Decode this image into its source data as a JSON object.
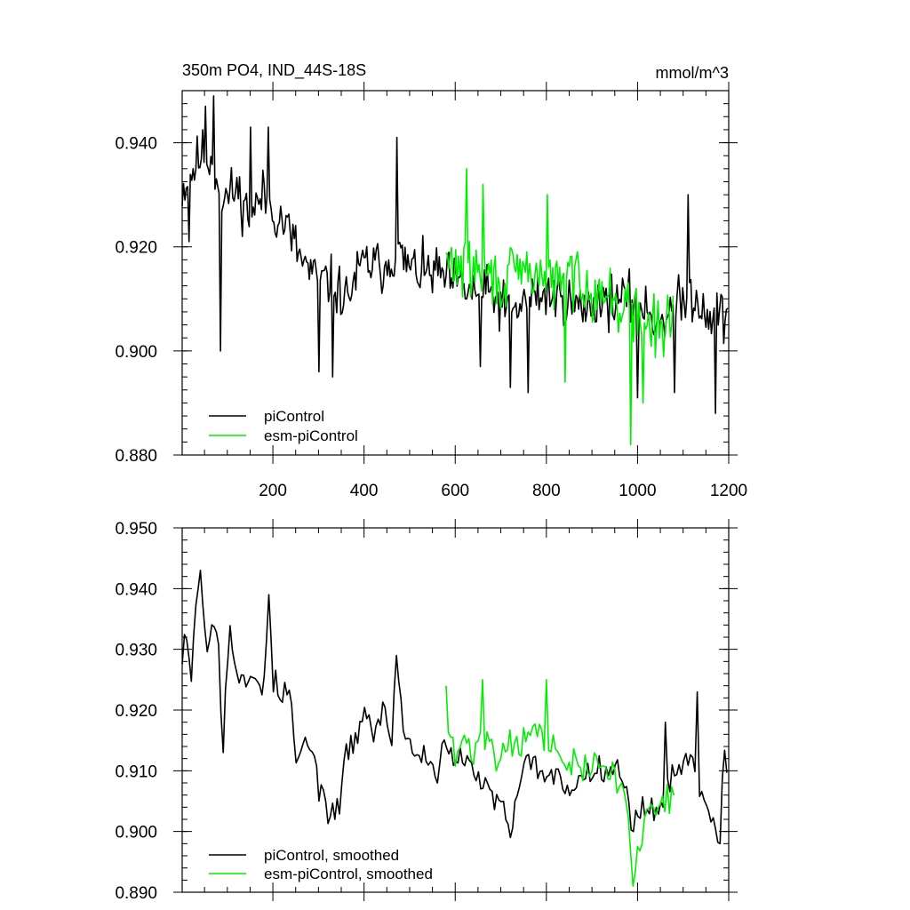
{
  "chart_data": [
    {
      "type": "line",
      "title": "350m PO4, IND_44S-18S",
      "units": "mmol/m^3",
      "xlim": [
        1,
        1200
      ],
      "ylim": [
        0.88,
        0.95
      ],
      "xticks": [
        200,
        400,
        600,
        800,
        1000,
        1200
      ],
      "xtick_labels": [
        "200",
        "400",
        "600",
        "800",
        "1000",
        "1200"
      ],
      "yticks": [
        0.88,
        0.9,
        0.92,
        0.94
      ],
      "ytick_labels": [
        "0.880",
        "0.900",
        "0.920",
        "0.940"
      ],
      "grid": false,
      "legend_position": "bottom-left",
      "series": [
        {
          "name": "piControl",
          "color": "#000000",
          "x_start": 1,
          "x_end": 1200,
          "anchors": [
            [
              1,
              0.931
            ],
            [
              20,
              0.934
            ],
            [
              45,
              0.938
            ],
            [
              70,
              0.936
            ],
            [
              90,
              0.929
            ],
            [
              120,
              0.931
            ],
            [
              150,
              0.926
            ],
            [
              180,
              0.93
            ],
            [
              200,
              0.927
            ],
            [
              230,
              0.924
            ],
            [
              260,
              0.918
            ],
            [
              290,
              0.914
            ],
            [
              330,
              0.913
            ],
            [
              360,
              0.91
            ],
            [
              400,
              0.917
            ],
            [
              440,
              0.916
            ],
            [
              470,
              0.919
            ],
            [
              500,
              0.916
            ],
            [
              530,
              0.915
            ],
            [
              560,
              0.915
            ],
            [
              600,
              0.913
            ],
            [
              640,
              0.911
            ],
            [
              680,
              0.911
            ],
            [
              720,
              0.907
            ],
            [
              760,
              0.91
            ],
            [
              800,
              0.911
            ],
            [
              840,
              0.91
            ],
            [
              880,
              0.908
            ],
            [
              920,
              0.91
            ],
            [
              960,
              0.91
            ],
            [
              1000,
              0.909
            ],
            [
              1040,
              0.906
            ],
            [
              1080,
              0.908
            ],
            [
              1120,
              0.911
            ],
            [
              1160,
              0.907
            ],
            [
              1200,
              0.907
            ]
          ],
          "noise_amp": 0.0075,
          "seed": 11,
          "extrema": [
            [
              15,
              0.921
            ],
            [
              50,
              0.947
            ],
            [
              70,
              0.949
            ],
            [
              85,
              0.9
            ],
            [
              150,
              0.943
            ],
            [
              190,
              0.943
            ],
            [
              300,
              0.896
            ],
            [
              330,
              0.895
            ],
            [
              470,
              0.941
            ],
            [
              655,
              0.897
            ],
            [
              720,
              0.893
            ],
            [
              760,
              0.892
            ],
            [
              1000,
              0.891
            ],
            [
              1080,
              0.892
            ],
            [
              1110,
              0.93
            ],
            [
              1170,
              0.888
            ]
          ]
        },
        {
          "name": "esm-piControl",
          "color": "#00ee00",
          "x_start": 580,
          "x_end": 1080,
          "anchors": [
            [
              580,
              0.917
            ],
            [
              620,
              0.916
            ],
            [
              660,
              0.915
            ],
            [
              700,
              0.913
            ],
            [
              740,
              0.915
            ],
            [
              780,
              0.915
            ],
            [
              820,
              0.913
            ],
            [
              860,
              0.915
            ],
            [
              900,
              0.912
            ],
            [
              940,
              0.91
            ],
            [
              980,
              0.908
            ],
            [
              1020,
              0.905
            ],
            [
              1060,
              0.904
            ],
            [
              1080,
              0.908
            ]
          ],
          "noise_amp": 0.0085,
          "seed": 29,
          "extrema": [
            [
              625,
              0.935
            ],
            [
              660,
              0.932
            ],
            [
              800,
              0.93
            ],
            [
              840,
              0.894
            ],
            [
              985,
              0.882
            ],
            [
              1010,
              0.89
            ]
          ]
        }
      ]
    },
    {
      "type": "line",
      "xlim": [
        1,
        1200
      ],
      "ylim": [
        0.89,
        0.95
      ],
      "xticks": [
        200,
        400,
        600,
        800,
        1000,
        1200
      ],
      "yticks": [
        0.89,
        0.9,
        0.91,
        0.92,
        0.93,
        0.94,
        0.95
      ],
      "ytick_labels": [
        "0.890",
        "0.900",
        "0.910",
        "0.920",
        "0.930",
        "0.940",
        "0.950"
      ],
      "grid": false,
      "legend_position": "bottom-left",
      "series": [
        {
          "name": "piControl, smoothed",
          "color": "#000000",
          "x_start": 1,
          "x_end": 1200,
          "anchors": [
            [
              1,
              0.93
            ],
            [
              10,
              0.934
            ],
            [
              20,
              0.925
            ],
            [
              30,
              0.938
            ],
            [
              40,
              0.942
            ],
            [
              55,
              0.93
            ],
            [
              70,
              0.936
            ],
            [
              80,
              0.934
            ],
            [
              90,
              0.913
            ],
            [
              105,
              0.935
            ],
            [
              120,
              0.925
            ],
            [
              140,
              0.924
            ],
            [
              160,
              0.926
            ],
            [
              180,
              0.924
            ],
            [
              190,
              0.938
            ],
            [
              200,
              0.925
            ],
            [
              220,
              0.922
            ],
            [
              240,
              0.923
            ],
            [
              250,
              0.91
            ],
            [
              270,
              0.915
            ],
            [
              290,
              0.912
            ],
            [
              300,
              0.908
            ],
            [
              320,
              0.904
            ],
            [
              340,
              0.902
            ],
            [
              360,
              0.912
            ],
            [
              380,
              0.915
            ],
            [
              400,
              0.92
            ],
            [
              420,
              0.916
            ],
            [
              440,
              0.92
            ],
            [
              460,
              0.915
            ],
            [
              470,
              0.929
            ],
            [
              490,
              0.915
            ],
            [
              510,
              0.913
            ],
            [
              540,
              0.912
            ],
            [
              560,
              0.91
            ],
            [
              580,
              0.915
            ],
            [
              600,
              0.912
            ],
            [
              640,
              0.91
            ],
            [
              680,
              0.906
            ],
            [
              710,
              0.903
            ],
            [
              720,
              0.899
            ],
            [
              740,
              0.907
            ],
            [
              760,
              0.912
            ],
            [
              790,
              0.91
            ],
            [
              820,
              0.909
            ],
            [
              850,
              0.907
            ],
            [
              880,
              0.909
            ],
            [
              900,
              0.91
            ],
            [
              920,
              0.911
            ],
            [
              960,
              0.911
            ],
            [
              990,
              0.9
            ],
            [
              1010,
              0.905
            ],
            [
              1040,
              0.903
            ],
            [
              1060,
              0.907
            ],
            [
              1080,
              0.909
            ],
            [
              1100,
              0.912
            ],
            [
              1120,
              0.911
            ],
            [
              1150,
              0.905
            ],
            [
              1170,
              0.901
            ],
            [
              1180,
              0.898
            ],
            [
              1190,
              0.915
            ],
            [
              1200,
              0.91
            ]
          ],
          "noise_amp": 0.0035,
          "seed": 53,
          "extrema": [
            [
              40,
              0.943
            ],
            [
              90,
              0.913
            ],
            [
              190,
              0.939
            ],
            [
              335,
              0.902
            ],
            [
              470,
              0.929
            ],
            [
              720,
              0.899
            ],
            [
              1060,
              0.918
            ],
            [
              1130,
              0.923
            ],
            [
              1180,
              0.898
            ]
          ]
        },
        {
          "name": "esm-piControl, smoothed",
          "color": "#00ee00",
          "x_start": 580,
          "x_end": 1080,
          "anchors": [
            [
              580,
              0.918
            ],
            [
              600,
              0.912
            ],
            [
              620,
              0.915
            ],
            [
              640,
              0.913
            ],
            [
              660,
              0.917
            ],
            [
              690,
              0.912
            ],
            [
              720,
              0.915
            ],
            [
              750,
              0.915
            ],
            [
              780,
              0.917
            ],
            [
              800,
              0.914
            ],
            [
              820,
              0.913
            ],
            [
              850,
              0.911
            ],
            [
              880,
              0.91
            ],
            [
              900,
              0.911
            ],
            [
              940,
              0.91
            ],
            [
              960,
              0.908
            ],
            [
              980,
              0.903
            ],
            [
              990,
              0.891
            ],
            [
              1000,
              0.896
            ],
            [
              1020,
              0.903
            ],
            [
              1040,
              0.905
            ],
            [
              1060,
              0.906
            ],
            [
              1080,
              0.906
            ]
          ],
          "noise_amp": 0.004,
          "seed": 71,
          "extrema": [
            [
              580,
              0.924
            ],
            [
              660,
              0.925
            ],
            [
              800,
              0.925
            ],
            [
              990,
              0.891
            ]
          ]
        }
      ]
    }
  ]
}
